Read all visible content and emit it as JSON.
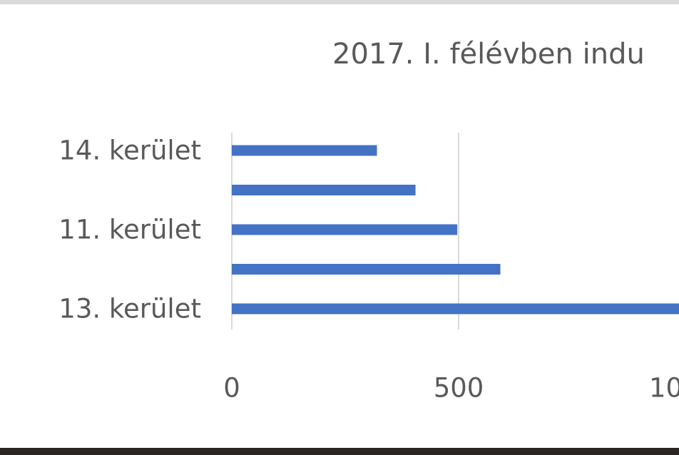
{
  "chart_data": {
    "type": "bar",
    "orientation": "horizontal",
    "title": "2017. I. félévben indu",
    "categories": [
      "14. kerület",
      "",
      "11. kerület",
      "",
      "13. kerület"
    ],
    "values": [
      320,
      405,
      497,
      592,
      1000
    ],
    "xlim": [
      0,
      1000
    ],
    "xticks": [
      "0",
      "500",
      "10"
    ],
    "grid": true,
    "colors": {
      "bar": "#4472c4",
      "grid": "#d9d9d9",
      "text": "#595959"
    }
  }
}
